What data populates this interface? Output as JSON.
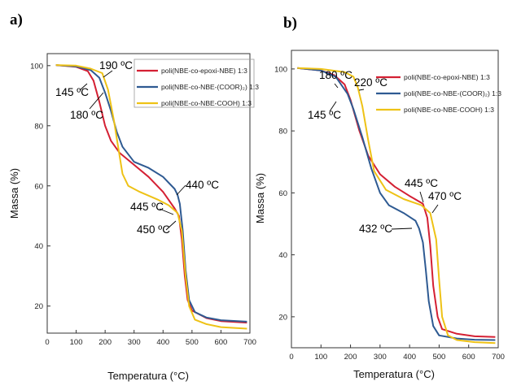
{
  "chart_data": [
    {
      "type": "line",
      "panel_label": "a)",
      "xlabel": "Temperatura (°C)",
      "ylabel": "Massa (%)",
      "xlim": [
        0,
        700
      ],
      "ylim": [
        11,
        104
      ],
      "x_ticks": [
        0,
        100,
        200,
        300,
        400,
        500,
        600,
        700
      ],
      "y_ticks": [
        20,
        40,
        60,
        80,
        100
      ],
      "legend_position": "top-right",
      "series": [
        {
          "name": "poli(NBE-co-epoxi-NBE) 1:3",
          "color": "#d42033",
          "points": [
            [
              30,
              100.2
            ],
            [
              100,
              99.6
            ],
            [
              140,
              98.2
            ],
            [
              160,
              95
            ],
            [
              180,
              88
            ],
            [
              200,
              80
            ],
            [
              220,
              75
            ],
            [
              250,
              71
            ],
            [
              300,
              67
            ],
            [
              350,
              63
            ],
            [
              400,
              58
            ],
            [
              440,
              52.5
            ],
            [
              455,
              50
            ],
            [
              465,
              42
            ],
            [
              475,
              30
            ],
            [
              485,
              22
            ],
            [
              500,
              18.5
            ],
            [
              550,
              16
            ],
            [
              600,
              15
            ],
            [
              690,
              14.5
            ]
          ]
        },
        {
          "name": "poli(NBE-co-NBE-(COOR)₂) 1:3",
          "color": "#2e5a92",
          "points": [
            [
              30,
              100.2
            ],
            [
              100,
              99.7
            ],
            [
              150,
              98.5
            ],
            [
              180,
              96
            ],
            [
              200,
              91
            ],
            [
              220,
              85
            ],
            [
              240,
              78
            ],
            [
              260,
              73
            ],
            [
              300,
              68
            ],
            [
              350,
              66
            ],
            [
              400,
              63
            ],
            [
              440,
              59
            ],
            [
              450,
              57
            ],
            [
              458,
              54
            ],
            [
              468,
              45
            ],
            [
              478,
              32
            ],
            [
              490,
              22
            ],
            [
              510,
              18
            ],
            [
              550,
              16.2
            ],
            [
              600,
              15.3
            ],
            [
              690,
              14.8
            ]
          ]
        },
        {
          "name": "poli(NBE-co-NBE-COOH) 1:3",
          "color": "#eec216",
          "points": [
            [
              30,
              100.2
            ],
            [
              100,
              100
            ],
            [
              150,
              99
            ],
            [
              190,
              97.5
            ],
            [
              210,
              92
            ],
            [
              230,
              82
            ],
            [
              245,
              73
            ],
            [
              260,
              64
            ],
            [
              280,
              60
            ],
            [
              320,
              58
            ],
            [
              380,
              55.5
            ],
            [
              420,
              53.5
            ],
            [
              450,
              51
            ],
            [
              465,
              45
            ],
            [
              478,
              30
            ],
            [
              490,
              20
            ],
            [
              510,
              15.5
            ],
            [
              550,
              14
            ],
            [
              600,
              13
            ],
            [
              690,
              12.5
            ]
          ]
        }
      ],
      "annotations": [
        {
          "text": "190 ºC",
          "x": 190,
          "y": 97.5
        },
        {
          "text": "145 ºC",
          "x": 145,
          "y": 98.2
        },
        {
          "text": "180 ºC",
          "x": 180,
          "y": 96
        },
        {
          "text": "440 ºC",
          "x": 440,
          "y": 59
        },
        {
          "text": "445 ºC",
          "x": 445,
          "y": 52.5
        },
        {
          "text": "450 ºC",
          "x": 450,
          "y": 51
        }
      ]
    },
    {
      "type": "line",
      "panel_label": "b)",
      "xlabel": "Temperatura (°C)",
      "ylabel": "Massa (%)",
      "xlim": [
        0,
        700
      ],
      "ylim": [
        10,
        106
      ],
      "x_ticks": [
        0,
        100,
        200,
        300,
        400,
        500,
        600,
        700
      ],
      "y_ticks": [
        20,
        40,
        60,
        80,
        100
      ],
      "legend_position": "top-right",
      "series": [
        {
          "name": "poli(NBE-co-epoxi-NBE) 1:3",
          "color": "#d42033",
          "points": [
            [
              20,
              100.3
            ],
            [
              100,
              99.5
            ],
            [
              145,
              98
            ],
            [
              180,
              95
            ],
            [
              200,
              90
            ],
            [
              230,
              80
            ],
            [
              260,
              72
            ],
            [
              300,
              66
            ],
            [
              350,
              62
            ],
            [
              400,
              59
            ],
            [
              445,
              56.5
            ],
            [
              460,
              52
            ],
            [
              470,
              43
            ],
            [
              480,
              30
            ],
            [
              495,
              20
            ],
            [
              510,
              16
            ],
            [
              560,
              14.5
            ],
            [
              620,
              13.7
            ],
            [
              690,
              13.5
            ]
          ]
        },
        {
          "name": "poli(NBE-co-NBE-(COOR)₂) 1:3",
          "color": "#2e5a92",
          "points": [
            [
              20,
              100.3
            ],
            [
              100,
              99.5
            ],
            [
              150,
              97.5
            ],
            [
              190,
              92
            ],
            [
              210,
              87
            ],
            [
              240,
              78
            ],
            [
              270,
              68
            ],
            [
              300,
              60
            ],
            [
              330,
              56
            ],
            [
              380,
              53.5
            ],
            [
              420,
              51
            ],
            [
              432,
              48.5
            ],
            [
              445,
              44
            ],
            [
              455,
              35
            ],
            [
              465,
              25
            ],
            [
              480,
              17
            ],
            [
              500,
              14
            ],
            [
              560,
              13
            ],
            [
              620,
              12.6
            ],
            [
              690,
              12.5
            ]
          ]
        },
        {
          "name": "poli(NBE-co-NBE-COOH) 1:3",
          "color": "#eec216",
          "points": [
            [
              20,
              100.3
            ],
            [
              100,
              100
            ],
            [
              180,
              99
            ],
            [
              210,
              97.5
            ],
            [
              225,
              94
            ],
            [
              240,
              88
            ],
            [
              260,
              77
            ],
            [
              280,
              67
            ],
            [
              320,
              61
            ],
            [
              380,
              58
            ],
            [
              440,
              56
            ],
            [
              470,
              53.5
            ],
            [
              490,
              45
            ],
            [
              500,
              32
            ],
            [
              510,
              20
            ],
            [
              530,
              14
            ],
            [
              560,
              12.5
            ],
            [
              620,
              11.8
            ],
            [
              690,
              11.5
            ]
          ]
        }
      ],
      "annotations": [
        {
          "text": "180 ºC",
          "x": 180,
          "y": 95
        },
        {
          "text": "220 ºC",
          "x": 220,
          "y": 97.5
        },
        {
          "text": "145 ºC",
          "x": 145,
          "y": 98
        },
        {
          "text": "445 ºC",
          "x": 445,
          "y": 56.5
        },
        {
          "text": "470 ºC",
          "x": 470,
          "y": 53.5
        },
        {
          "text": "432 ºC",
          "x": 432,
          "y": 48.5
        }
      ]
    }
  ]
}
